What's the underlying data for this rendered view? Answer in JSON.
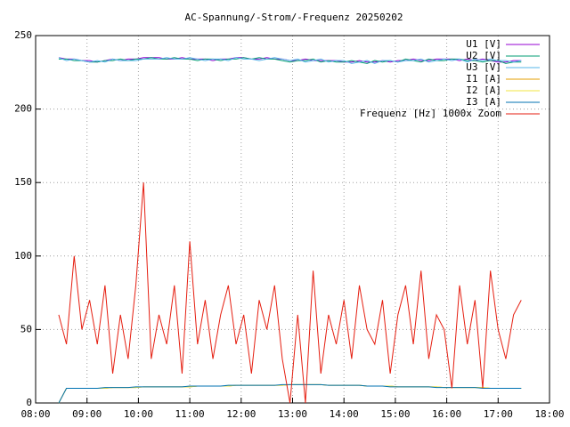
{
  "chart_data": {
    "type": "line",
    "title": "AC-Spannung/-Strom/-Frequenz 20250202",
    "x": [
      8.45,
      8.6,
      8.75,
      8.9,
      9.05,
      9.2,
      9.35,
      9.5,
      9.65,
      9.8,
      9.95,
      10.1,
      10.25,
      10.4,
      10.55,
      10.7,
      10.85,
      11,
      11.15,
      11.3,
      11.45,
      11.6,
      11.75,
      11.9,
      12.05,
      12.2,
      12.35,
      12.5,
      12.65,
      12.8,
      12.95,
      13.1,
      13.25,
      13.4,
      13.55,
      13.7,
      13.85,
      14,
      14.15,
      14.3,
      14.45,
      14.6,
      14.75,
      14.9,
      15.05,
      15.2,
      15.35,
      15.5,
      15.65,
      15.8,
      15.95,
      16.1,
      16.25,
      16.4,
      16.55,
      16.7,
      16.85,
      17,
      17.15,
      17.3,
      17.45
    ],
    "series": [
      {
        "name": "U1 [V]",
        "color": "#9400d3",
        "values": [
          235,
          234,
          234,
          233,
          233,
          232,
          233,
          234,
          233,
          234,
          234,
          235,
          235,
          235,
          234,
          234,
          235,
          234,
          234,
          234,
          233,
          234,
          234,
          235,
          235,
          234,
          234,
          235,
          234,
          234,
          233,
          233,
          234,
          233,
          233,
          233,
          233,
          232,
          232,
          233,
          232,
          232,
          233,
          232,
          233,
          233,
          234,
          233,
          233,
          234,
          234,
          234,
          233,
          234,
          233,
          234,
          233,
          232,
          232,
          233,
          233
        ]
      },
      {
        "name": "U2 [V]",
        "color": "#009e73",
        "values": [
          234,
          234,
          233,
          233,
          232,
          232,
          233,
          233,
          234,
          233,
          234,
          234,
          235,
          234,
          234,
          235,
          234,
          234,
          233,
          234,
          234,
          233,
          234,
          234,
          235,
          234,
          235,
          234,
          234,
          233,
          232,
          233,
          233,
          234,
          232,
          233,
          232,
          232,
          233,
          232,
          231,
          233,
          232,
          233,
          232,
          234,
          233,
          232,
          234,
          233,
          233,
          234,
          234,
          233,
          233,
          232,
          233,
          233,
          231,
          232,
          232
        ]
      },
      {
        "name": "U3 [V]",
        "color": "#56b4e9",
        "values": [
          235,
          233,
          234,
          233,
          232,
          233,
          232,
          234,
          233,
          233,
          233,
          234,
          234,
          234,
          235,
          234,
          234,
          235,
          234,
          233,
          234,
          234,
          233,
          235,
          234,
          234,
          233,
          234,
          235,
          234,
          233,
          234,
          232,
          233,
          234,
          232,
          233,
          233,
          231,
          232,
          233,
          231,
          233,
          233,
          232,
          233,
          233,
          234,
          232,
          233,
          234,
          233,
          234,
          232,
          234,
          233,
          234,
          233,
          233,
          232,
          233
        ]
      },
      {
        "name": "I1 [A]",
        "color": "#e69f00",
        "values": [
          0,
          10,
          10,
          10,
          10,
          10,
          10,
          10.5,
          10.5,
          10.5,
          10.5,
          11,
          11,
          11,
          11,
          11,
          11,
          11,
          11.5,
          11.5,
          11.5,
          11.5,
          11.5,
          12,
          12,
          12,
          12,
          12,
          12,
          12,
          12.5,
          12.5,
          12.5,
          12.5,
          12.5,
          12,
          12,
          12,
          12,
          12,
          11.5,
          11.5,
          11.5,
          11.5,
          11,
          11,
          11,
          11,
          11,
          11,
          10.5,
          10.5,
          10.5,
          10.5,
          10.5,
          10.5,
          10,
          10,
          10,
          10,
          10
        ]
      },
      {
        "name": "I2 [A]",
        "color": "#f0e442",
        "values": [
          0,
          10,
          10,
          10,
          10,
          10,
          10,
          10.5,
          10.5,
          10.5,
          10.5,
          11,
          11,
          11,
          11,
          11,
          11,
          11,
          11.5,
          11.5,
          11.5,
          11.5,
          11.5,
          12,
          12,
          12,
          12,
          12,
          12,
          12,
          12.5,
          12.5,
          12.5,
          12.5,
          12.5,
          12,
          12,
          12,
          12,
          12,
          11.5,
          11.5,
          11.5,
          11.5,
          11,
          11,
          11,
          11,
          11,
          11,
          10.5,
          10.5,
          10.5,
          10.5,
          10.5,
          10.5,
          10,
          10,
          10,
          10,
          10
        ]
      },
      {
        "name": "I3 [A]",
        "color": "#0072b2",
        "values": [
          0,
          10,
          10,
          10,
          10,
          10,
          10.5,
          10.5,
          10.5,
          10.5,
          11,
          11,
          11,
          11,
          11,
          11,
          11,
          11.5,
          11.5,
          11.5,
          11.5,
          11.5,
          12,
          12,
          12,
          12,
          12,
          12,
          12,
          12.5,
          12.5,
          12.5,
          12.5,
          12.5,
          12.5,
          12,
          12,
          12,
          12,
          12,
          11.5,
          11.5,
          11.5,
          11,
          11,
          11,
          11,
          11,
          11,
          10.5,
          10.5,
          10.5,
          10.5,
          10.5,
          10.5,
          10,
          10,
          10,
          10,
          10,
          10
        ]
      },
      {
        "name": "Frequenz [Hz] 1000x Zoom",
        "color": "#e51e10",
        "values": [
          60,
          40,
          100,
          50,
          70,
          40,
          80,
          20,
          60,
          30,
          80,
          150,
          30,
          60,
          40,
          80,
          20,
          110,
          40,
          70,
          30,
          60,
          80,
          40,
          60,
          20,
          70,
          50,
          80,
          30,
          0,
          60,
          0,
          90,
          20,
          60,
          40,
          70,
          30,
          80,
          50,
          40,
          70,
          20,
          60,
          80,
          40,
          90,
          30,
          60,
          50,
          10,
          80,
          40,
          70,
          10,
          90,
          50,
          30,
          60,
          70
        ]
      }
    ],
    "xlim": [
      8,
      18
    ],
    "xticks": [
      {
        "value": 8,
        "label": "08:00"
      },
      {
        "value": 9,
        "label": "09:00"
      },
      {
        "value": 10,
        "label": "10:00"
      },
      {
        "value": 11,
        "label": "11:00"
      },
      {
        "value": 12,
        "label": "12:00"
      },
      {
        "value": 13,
        "label": "13:00"
      },
      {
        "value": 14,
        "label": "14:00"
      },
      {
        "value": 15,
        "label": "15:00"
      },
      {
        "value": 16,
        "label": "16:00"
      },
      {
        "value": 17,
        "label": "17:00"
      },
      {
        "value": 18,
        "label": "18:00"
      }
    ],
    "ylim": [
      0,
      250
    ],
    "yticks": [
      0,
      50,
      100,
      150,
      200,
      250
    ],
    "grid": true,
    "legend": "top-right"
  }
}
